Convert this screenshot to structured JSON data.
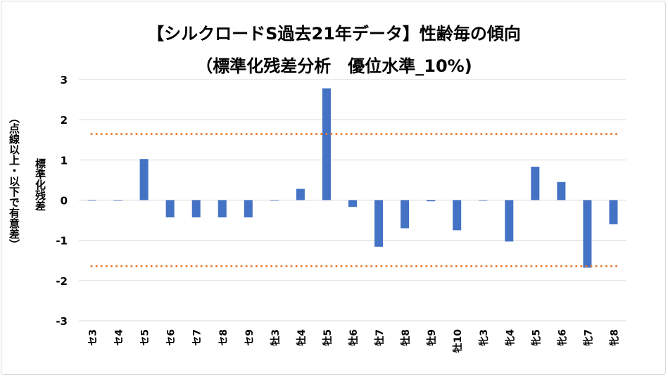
{
  "chart_data": {
    "type": "bar",
    "title": "【シルクロードS過去21年データ】性齢毎の傾向",
    "subtitle": "（標準化残差分析　優位水準_10%)",
    "ylabel": "標準化残差",
    "ylabel2": "（点線以上・以下で有意差）",
    "xlabel": "",
    "ylim": [
      -3,
      3
    ],
    "yticks": [
      3,
      2,
      1,
      0,
      -1,
      -2,
      -3
    ],
    "grid": true,
    "categories": [
      "セ3",
      "セ4",
      "セ5",
      "セ6",
      "セ7",
      "セ8",
      "セ9",
      "牡3",
      "牡4",
      "牡5",
      "牡6",
      "牡7",
      "牡8",
      "牡9",
      "牡10",
      "牝3",
      "牝4",
      "牝5",
      "牝6",
      "牝7",
      "牝8"
    ],
    "values": [
      0,
      0,
      1.02,
      -0.43,
      -0.43,
      -0.43,
      -0.43,
      0,
      0.28,
      2.78,
      -0.17,
      -1.16,
      -0.7,
      -0.03,
      -0.75,
      0,
      -1.03,
      0.83,
      0.45,
      -1.68,
      -0.6
    ],
    "thresholds": [
      1.645,
      -1.645
    ],
    "colors": {
      "bar": "#4472C4",
      "threshold": "#ED7D31",
      "grid": "#D9D9D9"
    }
  }
}
